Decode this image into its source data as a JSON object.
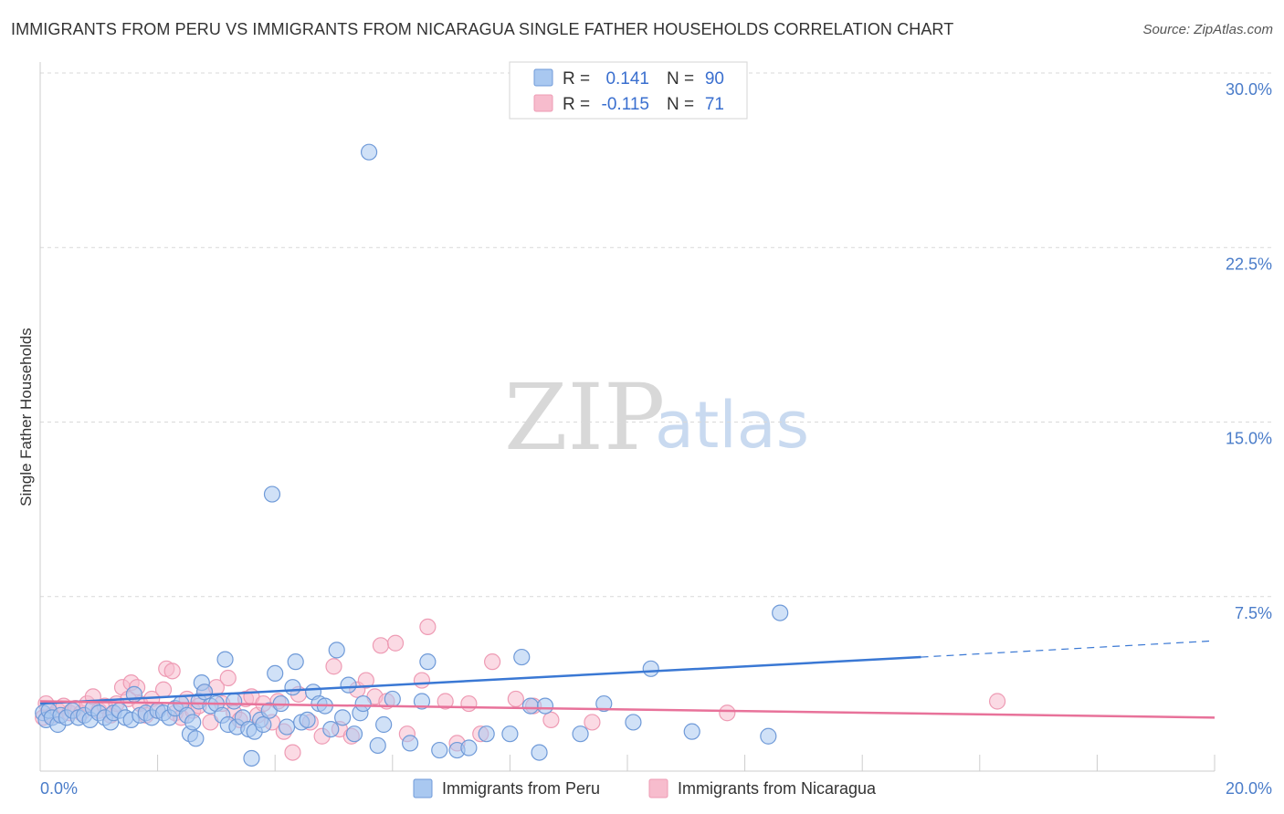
{
  "header": {
    "title": "IMMIGRANTS FROM PERU VS IMMIGRANTS FROM NICARAGUA SINGLE FATHER HOUSEHOLDS CORRELATION CHART",
    "source": "Source: ZipAtlas.com"
  },
  "watermark": {
    "zip": "ZIP",
    "atlas": "atlas"
  },
  "legend": {
    "peru": {
      "r_label": "R =",
      "r_value": "0.141",
      "n_label": "N =",
      "n_value": "90"
    },
    "nicaragua": {
      "r_label": "R =",
      "r_value": "-0.115",
      "n_label": "N =",
      "n_value": "71"
    }
  },
  "colors": {
    "peru_fill": "#a9c8f0",
    "peru_stroke": "#6f9ad8",
    "peru_line": "#3a78d4",
    "nicaragua_fill": "#f7bccd",
    "nicaragua_stroke": "#ee9bb4",
    "nicaragua_line": "#e8729a",
    "grid": "#d9d9d9",
    "tick_text": "#4a7cc9"
  },
  "chart_data": {
    "type": "scatter",
    "title": "IMMIGRANTS FROM PERU VS IMMIGRANTS FROM NICARAGUA SINGLE FATHER HOUSEHOLDS CORRELATION CHART",
    "xlabel": "",
    "ylabel": "Single Father Households",
    "xlim": [
      0,
      20
    ],
    "ylim": [
      0,
      30
    ],
    "x_tick_labels": {
      "min": "0.0%",
      "max": "20.0%"
    },
    "y_ticks": [
      7.5,
      15.0,
      22.5,
      30.0
    ],
    "y_tick_labels": [
      "7.5%",
      "15.0%",
      "22.5%",
      "30.0%"
    ],
    "grid": true,
    "legend_position": "top-center",
    "series": [
      {
        "name": "Immigrants from Peru",
        "color": "#a9c8f0",
        "trend": {
          "x0": 0,
          "y0": 2.9,
          "x1": 15.0,
          "y1": 4.9,
          "dash_to_x": 20,
          "dash_to_y": 5.6
        },
        "points": [
          [
            0.05,
            2.5
          ],
          [
            0.1,
            2.2
          ],
          [
            0.15,
            2.6
          ],
          [
            0.2,
            2.3
          ],
          [
            0.3,
            2.0
          ],
          [
            0.35,
            2.4
          ],
          [
            0.45,
            2.3
          ],
          [
            0.55,
            2.6
          ],
          [
            0.65,
            2.3
          ],
          [
            0.75,
            2.4
          ],
          [
            0.85,
            2.2
          ],
          [
            0.9,
            2.7
          ],
          [
            1.0,
            2.5
          ],
          [
            1.1,
            2.3
          ],
          [
            1.2,
            2.1
          ],
          [
            1.25,
            2.5
          ],
          [
            1.35,
            2.6
          ],
          [
            1.45,
            2.3
          ],
          [
            1.55,
            2.2
          ],
          [
            1.6,
            3.3
          ],
          [
            1.7,
            2.4
          ],
          [
            1.8,
            2.5
          ],
          [
            1.9,
            2.3
          ],
          [
            2.0,
            2.6
          ],
          [
            2.1,
            2.5
          ],
          [
            2.2,
            2.3
          ],
          [
            2.3,
            2.7
          ],
          [
            2.4,
            2.9
          ],
          [
            2.5,
            2.4
          ],
          [
            2.55,
            1.6
          ],
          [
            2.6,
            2.1
          ],
          [
            2.65,
            1.4
          ],
          [
            2.7,
            3.0
          ],
          [
            2.75,
            3.8
          ],
          [
            2.8,
            3.4
          ],
          [
            2.9,
            2.8
          ],
          [
            3.0,
            2.9
          ],
          [
            3.1,
            2.4
          ],
          [
            3.15,
            4.8
          ],
          [
            3.2,
            2.0
          ],
          [
            3.3,
            3.0
          ],
          [
            3.35,
            1.9
          ],
          [
            3.45,
            2.3
          ],
          [
            3.55,
            1.8
          ],
          [
            3.6,
            0.55
          ],
          [
            3.65,
            1.7
          ],
          [
            3.75,
            2.2
          ],
          [
            3.8,
            2.0
          ],
          [
            3.9,
            2.6
          ],
          [
            3.95,
            11.9
          ],
          [
            4.0,
            4.2
          ],
          [
            4.1,
            2.9
          ],
          [
            4.2,
            1.9
          ],
          [
            4.3,
            3.6
          ],
          [
            4.35,
            4.7
          ],
          [
            4.45,
            2.1
          ],
          [
            4.55,
            2.2
          ],
          [
            4.65,
            3.4
          ],
          [
            4.75,
            2.9
          ],
          [
            4.85,
            2.8
          ],
          [
            4.95,
            1.8
          ],
          [
            5.05,
            5.2
          ],
          [
            5.15,
            2.3
          ],
          [
            5.25,
            3.7
          ],
          [
            5.35,
            1.6
          ],
          [
            5.45,
            2.5
          ],
          [
            5.5,
            2.9
          ],
          [
            5.6,
            26.6
          ],
          [
            5.75,
            1.1
          ],
          [
            5.85,
            2.0
          ],
          [
            6.0,
            3.1
          ],
          [
            6.3,
            1.2
          ],
          [
            6.5,
            3.0
          ],
          [
            6.6,
            4.7
          ],
          [
            6.8,
            0.9
          ],
          [
            7.1,
            0.9
          ],
          [
            7.3,
            1.0
          ],
          [
            7.6,
            1.6
          ],
          [
            8.0,
            1.6
          ],
          [
            8.2,
            4.9
          ],
          [
            8.35,
            2.8
          ],
          [
            8.5,
            0.8
          ],
          [
            8.6,
            2.8
          ],
          [
            9.2,
            1.6
          ],
          [
            9.6,
            2.9
          ],
          [
            10.1,
            2.1
          ],
          [
            10.4,
            4.4
          ],
          [
            11.1,
            1.7
          ],
          [
            12.4,
            1.5
          ],
          [
            12.6,
            6.8
          ]
        ]
      },
      {
        "name": "Immigrants from Nicaragua",
        "color": "#f7bccd",
        "trend": {
          "x0": 0,
          "y0": 3.0,
          "x1": 20,
          "y1": 2.3
        },
        "points": [
          [
            0.05,
            2.3
          ],
          [
            0.1,
            2.9
          ],
          [
            0.2,
            2.4
          ],
          [
            0.3,
            2.6
          ],
          [
            0.4,
            2.8
          ],
          [
            0.5,
            2.5
          ],
          [
            0.6,
            2.7
          ],
          [
            0.7,
            2.5
          ],
          [
            0.8,
            2.9
          ],
          [
            0.9,
            3.2
          ],
          [
            1.0,
            2.6
          ],
          [
            1.1,
            2.8
          ],
          [
            1.2,
            2.4
          ],
          [
            1.3,
            2.9
          ],
          [
            1.4,
            3.6
          ],
          [
            1.5,
            3.1
          ],
          [
            1.55,
            3.8
          ],
          [
            1.65,
            3.6
          ],
          [
            1.7,
            2.9
          ],
          [
            1.8,
            2.4
          ],
          [
            1.9,
            3.1
          ],
          [
            2.0,
            2.6
          ],
          [
            2.1,
            3.5
          ],
          [
            2.15,
            4.4
          ],
          [
            2.25,
            4.3
          ],
          [
            2.3,
            2.5
          ],
          [
            2.4,
            2.3
          ],
          [
            2.5,
            3.1
          ],
          [
            2.6,
            2.6
          ],
          [
            2.7,
            2.8
          ],
          [
            2.8,
            3.4
          ],
          [
            2.9,
            2.1
          ],
          [
            3.0,
            3.6
          ],
          [
            3.1,
            2.9
          ],
          [
            3.2,
            4.0
          ],
          [
            3.3,
            2.5
          ],
          [
            3.4,
            2.2
          ],
          [
            3.5,
            3.1
          ],
          [
            3.6,
            3.2
          ],
          [
            3.7,
            2.4
          ],
          [
            3.8,
            2.9
          ],
          [
            3.95,
            2.1
          ],
          [
            4.05,
            3.0
          ],
          [
            4.15,
            1.7
          ],
          [
            4.3,
            0.8
          ],
          [
            4.4,
            3.3
          ],
          [
            4.6,
            2.1
          ],
          [
            4.8,
            1.5
          ],
          [
            5.0,
            4.5
          ],
          [
            5.1,
            1.8
          ],
          [
            5.3,
            1.5
          ],
          [
            5.4,
            3.5
          ],
          [
            5.55,
            3.9
          ],
          [
            5.7,
            3.2
          ],
          [
            5.8,
            5.4
          ],
          [
            5.9,
            3.0
          ],
          [
            6.05,
            5.5
          ],
          [
            6.25,
            1.6
          ],
          [
            6.5,
            3.9
          ],
          [
            6.6,
            6.2
          ],
          [
            6.9,
            3.0
          ],
          [
            7.1,
            1.2
          ],
          [
            7.3,
            2.9
          ],
          [
            7.5,
            1.6
          ],
          [
            7.7,
            4.7
          ],
          [
            8.1,
            3.1
          ],
          [
            8.4,
            2.8
          ],
          [
            8.7,
            2.2
          ],
          [
            9.4,
            2.1
          ],
          [
            11.7,
            2.5
          ],
          [
            16.3,
            3.0
          ]
        ]
      }
    ]
  },
  "bottom_legend": {
    "peru_label": "Immigrants from Peru",
    "nicaragua_label": "Immigrants from Nicaragua"
  }
}
